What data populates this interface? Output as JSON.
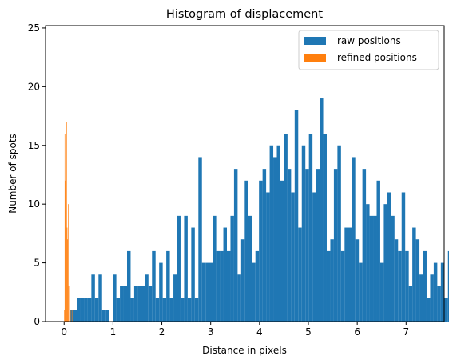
{
  "chart_data": {
    "type": "bar",
    "title": "Histogram of displacement",
    "xlabel": "Distance in pixels",
    "ylabel": "Number of spots",
    "xlim": [
      -0.38,
      7.78
    ],
    "ylim": [
      0,
      25.2
    ],
    "xticks": [
      0,
      1,
      2,
      3,
      4,
      5,
      6,
      7
    ],
    "yticks": [
      0,
      5,
      10,
      15,
      20,
      25
    ],
    "grid": false,
    "legend_position": "top-right",
    "series": [
      {
        "name": "raw positions",
        "color": "#1f77b4",
        "bin_start": 0.12,
        "bin_width": 0.073,
        "values": [
          1,
          1,
          2,
          2,
          2,
          2,
          4,
          2,
          4,
          1,
          1,
          0,
          4,
          2,
          3,
          3,
          6,
          2,
          3,
          3,
          3,
          4,
          3,
          6,
          2,
          5,
          2,
          6,
          2,
          4,
          9,
          2,
          9,
          2,
          8,
          2,
          14,
          5,
          5,
          5,
          9,
          6,
          6,
          8,
          6,
          9,
          13,
          4,
          7,
          12,
          9,
          5,
          6,
          12,
          13,
          11,
          15,
          14,
          15,
          12,
          16,
          13,
          11,
          18,
          8,
          15,
          13,
          16,
          11,
          13,
          19,
          16,
          6,
          7,
          13,
          15,
          6,
          8,
          8,
          14,
          7,
          5,
          13,
          10,
          9,
          9,
          12,
          5,
          10,
          11,
          9,
          7,
          6,
          11,
          6,
          3,
          8,
          7,
          4,
          6,
          2,
          4,
          5,
          3,
          5,
          2,
          6,
          4,
          5,
          2,
          3,
          2,
          2,
          1,
          3,
          1,
          2,
          2,
          1,
          2,
          1
        ],
        "values_truncated_note": ""
      },
      {
        "name": "refined positions",
        "color": "#ff7f0e",
        "bin_start": 0.0,
        "bin_width": 0.0112,
        "values": [
          1,
          16,
          12,
          15,
          17,
          8,
          7,
          10,
          3,
          0,
          1,
          1,
          0,
          0,
          1
        ]
      }
    ]
  }
}
